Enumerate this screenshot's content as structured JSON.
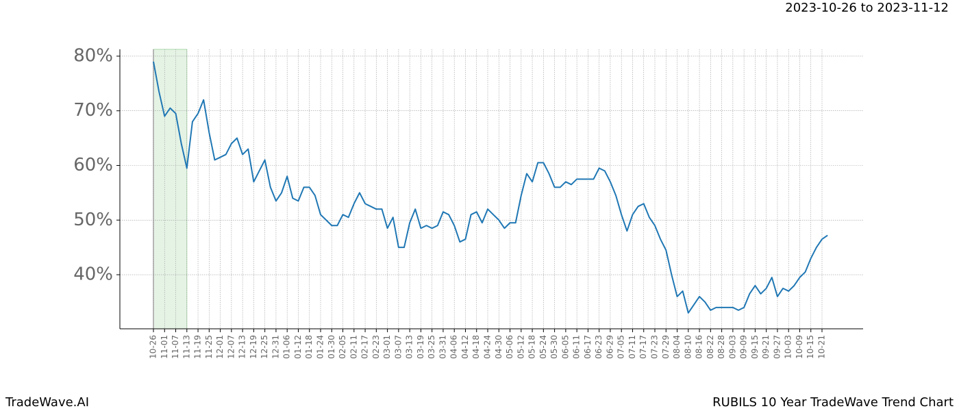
{
  "chart_data": {
    "type": "line",
    "date_range": "2023-10-26 to 2023-11-12",
    "brand": "TradeWave.AI",
    "title": "RUBILS 10 Year TradeWave Trend Chart",
    "categories": [
      "10-26",
      null,
      "11-01",
      null,
      "11-07",
      null,
      "11-13",
      null,
      "11-19",
      null,
      "11-25",
      null,
      "12-01",
      null,
      "12-07",
      null,
      "12-13",
      null,
      "12-19",
      null,
      "12-25",
      null,
      "12-31",
      null,
      "01-06",
      null,
      "01-12",
      null,
      "01-18",
      null,
      "01-24",
      null,
      "01-30",
      null,
      "02-05",
      null,
      "02-11",
      null,
      "02-17",
      null,
      "02-23",
      null,
      "03-01",
      null,
      "03-07",
      null,
      "03-13",
      null,
      "03-19",
      null,
      "03-25",
      null,
      "03-31",
      null,
      "04-06",
      null,
      "04-12",
      null,
      "04-18",
      null,
      "04-24",
      null,
      "04-30",
      null,
      "05-06",
      null,
      "05-12",
      null,
      "05-18",
      null,
      "05-24",
      null,
      "05-30",
      null,
      "06-05",
      null,
      "06-11",
      null,
      "06-17",
      null,
      "06-23",
      null,
      "06-29",
      null,
      "07-05",
      null,
      "07-11",
      null,
      "07-17",
      null,
      "07-23",
      null,
      "07-29",
      null,
      "08-04",
      null,
      "08-10",
      null,
      "08-16",
      null,
      "08-22",
      null,
      "08-28",
      null,
      "09-03",
      null,
      "09-09",
      null,
      "09-15",
      null,
      "09-21",
      null,
      "09-27",
      null,
      "10-03",
      null,
      "10-09",
      null,
      "10-15",
      null,
      "10-21",
      null
    ],
    "values": [
      79,
      73.5,
      69,
      70.5,
      69.5,
      64,
      59.5,
      68,
      69.5,
      72,
      66,
      61,
      61.5,
      62,
      64,
      65,
      62,
      63,
      57,
      59,
      61,
      56,
      53.5,
      55,
      58,
      54,
      53.5,
      56,
      56,
      54.5,
      51,
      50,
      49,
      49,
      51,
      50.5,
      53,
      55,
      53,
      52.5,
      52,
      52,
      48.5,
      50.5,
      45,
      45,
      49.5,
      52,
      48.5,
      49,
      48.5,
      49,
      51.5,
      51,
      49,
      46,
      46.5,
      51,
      51.5,
      49.5,
      52,
      51,
      50,
      48.5,
      49.5,
      49.5,
      54.5,
      58.5,
      57,
      60.5,
      60.5,
      58.5,
      56,
      56,
      57,
      56.5,
      57.5,
      57.5,
      57.5,
      57.5,
      59.5,
      59,
      57,
      54.5,
      51,
      48,
      51,
      52.5,
      53,
      50.5,
      49,
      46.5,
      44.5,
      40,
      36,
      37,
      33,
      34.5,
      36,
      35,
      33.5,
      34,
      34,
      34,
      34,
      33.5,
      34,
      36.5,
      38,
      36.5,
      37.5,
      39.5,
      36,
      37.5,
      37,
      38,
      39.5,
      40.5,
      43,
      45,
      46.5,
      47.2
    ],
    "color": "#1f77b4",
    "shaded_span": [
      "10-26",
      "11-13"
    ],
    "shade_color": "#2ca02c",
    "ylim": [
      30.1,
      81.25
    ],
    "yticks": [
      {
        "value": 40,
        "label": "40%"
      },
      {
        "value": 50,
        "label": "50%"
      },
      {
        "value": 60,
        "label": "60%"
      },
      {
        "value": 70,
        "label": "70%"
      },
      {
        "value": 80,
        "label": "80%"
      }
    ],
    "grid": true
  }
}
